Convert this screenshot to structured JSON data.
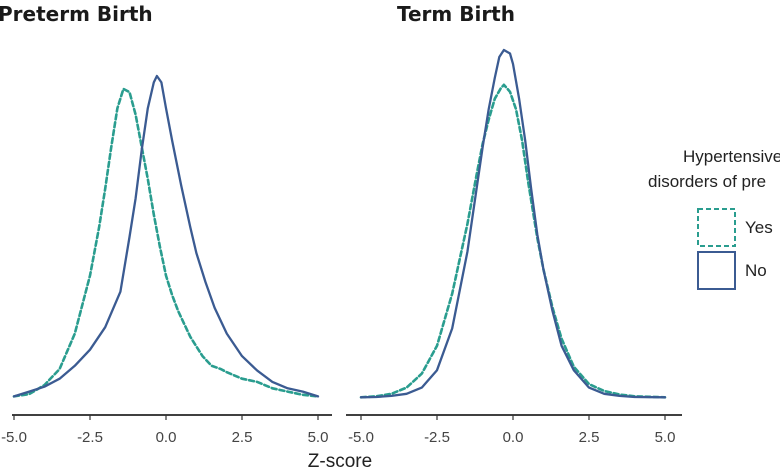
{
  "chart_data": {
    "type": "line",
    "subtype": "density",
    "xlabel": "Z-score",
    "xlim": [
      -5,
      5
    ],
    "x_ticks": [
      "-5.0",
      "-2.5",
      "0.0",
      "2.5",
      "5.0"
    ],
    "legend": {
      "title_lines": [
        "Hypertensive",
        "disorders of pre"
      ],
      "placement": "right",
      "entries": [
        "Yes",
        "No"
      ]
    },
    "colors": {
      "Yes": "#2a9d8f",
      "No": "#3b5b92"
    },
    "panels": [
      {
        "title": "Preterm Birth",
        "series": [
          {
            "name": "Yes",
            "style": "dashed",
            "points": [
              [
                -5.0,
                0.005
              ],
              [
                -4.5,
                0.012
              ],
              [
                -4.0,
                0.04
              ],
              [
                -3.5,
                0.09
              ],
              [
                -3.0,
                0.2
              ],
              [
                -2.5,
                0.38
              ],
              [
                -2.2,
                0.53
              ],
              [
                -2.0,
                0.65
              ],
              [
                -1.8,
                0.78
              ],
              [
                -1.6,
                0.9
              ],
              [
                -1.4,
                0.96
              ],
              [
                -1.2,
                0.95
              ],
              [
                -1.0,
                0.88
              ],
              [
                -0.8,
                0.78
              ],
              [
                -0.6,
                0.68
              ],
              [
                -0.4,
                0.57
              ],
              [
                -0.2,
                0.47
              ],
              [
                0.0,
                0.38
              ],
              [
                0.2,
                0.32
              ],
              [
                0.4,
                0.27
              ],
              [
                0.6,
                0.23
              ],
              [
                0.8,
                0.19
              ],
              [
                1.0,
                0.16
              ],
              [
                1.2,
                0.13
              ],
              [
                1.5,
                0.1
              ],
              [
                1.8,
                0.09
              ],
              [
                2.0,
                0.08
              ],
              [
                2.5,
                0.06
              ],
              [
                3.0,
                0.05
              ],
              [
                3.5,
                0.03
              ],
              [
                4.0,
                0.02
              ],
              [
                4.5,
                0.01
              ],
              [
                5.0,
                0.005
              ]
            ]
          },
          {
            "name": "No",
            "style": "solid",
            "points": [
              [
                -5.0,
                0.005
              ],
              [
                -4.5,
                0.02
              ],
              [
                -4.0,
                0.035
              ],
              [
                -3.5,
                0.06
              ],
              [
                -3.0,
                0.1
              ],
              [
                -2.5,
                0.15
              ],
              [
                -2.0,
                0.22
              ],
              [
                -1.5,
                0.33
              ],
              [
                -1.2,
                0.5
              ],
              [
                -1.0,
                0.62
              ],
              [
                -0.8,
                0.77
              ],
              [
                -0.6,
                0.9
              ],
              [
                -0.4,
                0.98
              ],
              [
                -0.3,
                1.0
              ],
              [
                -0.15,
                0.98
              ],
              [
                0.0,
                0.9
              ],
              [
                0.2,
                0.8
              ],
              [
                0.5,
                0.66
              ],
              [
                0.8,
                0.53
              ],
              [
                1.0,
                0.45
              ],
              [
                1.3,
                0.36
              ],
              [
                1.6,
                0.28
              ],
              [
                2.0,
                0.2
              ],
              [
                2.5,
                0.13
              ],
              [
                3.0,
                0.085
              ],
              [
                3.5,
                0.05
              ],
              [
                4.0,
                0.03
              ],
              [
                4.5,
                0.02
              ],
              [
                5.0,
                0.005
              ]
            ]
          }
        ]
      },
      {
        "title": "Term Birth",
        "series": [
          {
            "name": "Yes",
            "style": "dashed",
            "points": [
              [
                -5.0,
                0.002
              ],
              [
                -4.5,
                0.005
              ],
              [
                -4.0,
                0.012
              ],
              [
                -3.5,
                0.03
              ],
              [
                -3.0,
                0.07
              ],
              [
                -2.5,
                0.15
              ],
              [
                -2.0,
                0.3
              ],
              [
                -1.5,
                0.5
              ],
              [
                -1.2,
                0.64
              ],
              [
                -1.0,
                0.73
              ],
              [
                -0.8,
                0.8
              ],
              [
                -0.6,
                0.86
              ],
              [
                -0.4,
                0.89
              ],
              [
                -0.3,
                0.9
              ],
              [
                -0.1,
                0.88
              ],
              [
                0.1,
                0.83
              ],
              [
                0.3,
                0.74
              ],
              [
                0.5,
                0.62
              ],
              [
                0.8,
                0.46
              ],
              [
                1.0,
                0.37
              ],
              [
                1.3,
                0.26
              ],
              [
                1.6,
                0.17
              ],
              [
                2.0,
                0.09
              ],
              [
                2.5,
                0.04
              ],
              [
                3.0,
                0.02
              ],
              [
                3.5,
                0.01
              ],
              [
                4.0,
                0.005
              ],
              [
                5.0,
                0.002
              ]
            ]
          },
          {
            "name": "No",
            "style": "solid",
            "points": [
              [
                -5.0,
                0.002
              ],
              [
                -4.5,
                0.003
              ],
              [
                -4.0,
                0.006
              ],
              [
                -3.5,
                0.012
              ],
              [
                -3.0,
                0.03
              ],
              [
                -2.5,
                0.08
              ],
              [
                -2.0,
                0.2
              ],
              [
                -1.5,
                0.42
              ],
              [
                -1.2,
                0.6
              ],
              [
                -1.0,
                0.72
              ],
              [
                -0.8,
                0.83
              ],
              [
                -0.6,
                0.92
              ],
              [
                -0.45,
                0.98
              ],
              [
                -0.3,
                1.0
              ],
              [
                -0.1,
                0.99
              ],
              [
                0.0,
                0.96
              ],
              [
                0.2,
                0.86
              ],
              [
                0.4,
                0.74
              ],
              [
                0.6,
                0.6
              ],
              [
                0.8,
                0.47
              ],
              [
                1.0,
                0.37
              ],
              [
                1.3,
                0.25
              ],
              [
                1.6,
                0.15
              ],
              [
                2.0,
                0.08
              ],
              [
                2.5,
                0.03
              ],
              [
                3.0,
                0.012
              ],
              [
                3.5,
                0.006
              ],
              [
                4.0,
                0.003
              ],
              [
                5.0,
                0.002
              ]
            ]
          }
        ]
      }
    ]
  }
}
